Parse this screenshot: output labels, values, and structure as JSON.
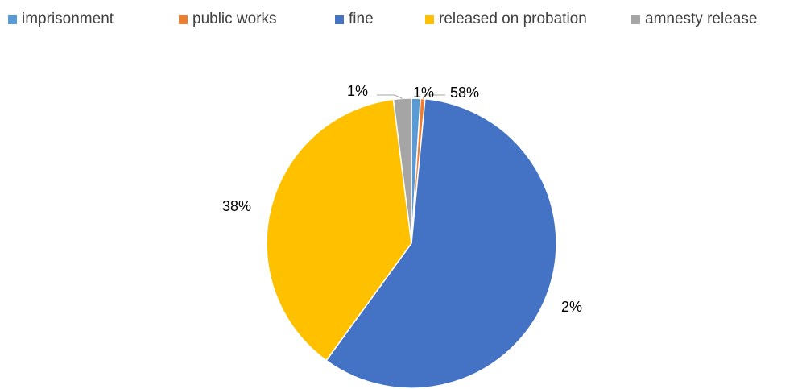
{
  "chart_data": {
    "type": "pie",
    "legend_position": "top",
    "slices": [
      {
        "label": "imprisonment",
        "value": 1,
        "display": "1%",
        "color": "#5B9BD5"
      },
      {
        "label": "public works",
        "value": 0.5,
        "display": "1%",
        "color": "#ED7D31"
      },
      {
        "label": "fine",
        "value": 58.5,
        "display": "58%",
        "color": "#4472C4"
      },
      {
        "label": "released on probation",
        "value": 38,
        "display": "38%",
        "color": "#FFC000"
      },
      {
        "label": "amnesty release",
        "value": 2,
        "display": "2%",
        "color": "#A5A5A5"
      }
    ]
  }
}
